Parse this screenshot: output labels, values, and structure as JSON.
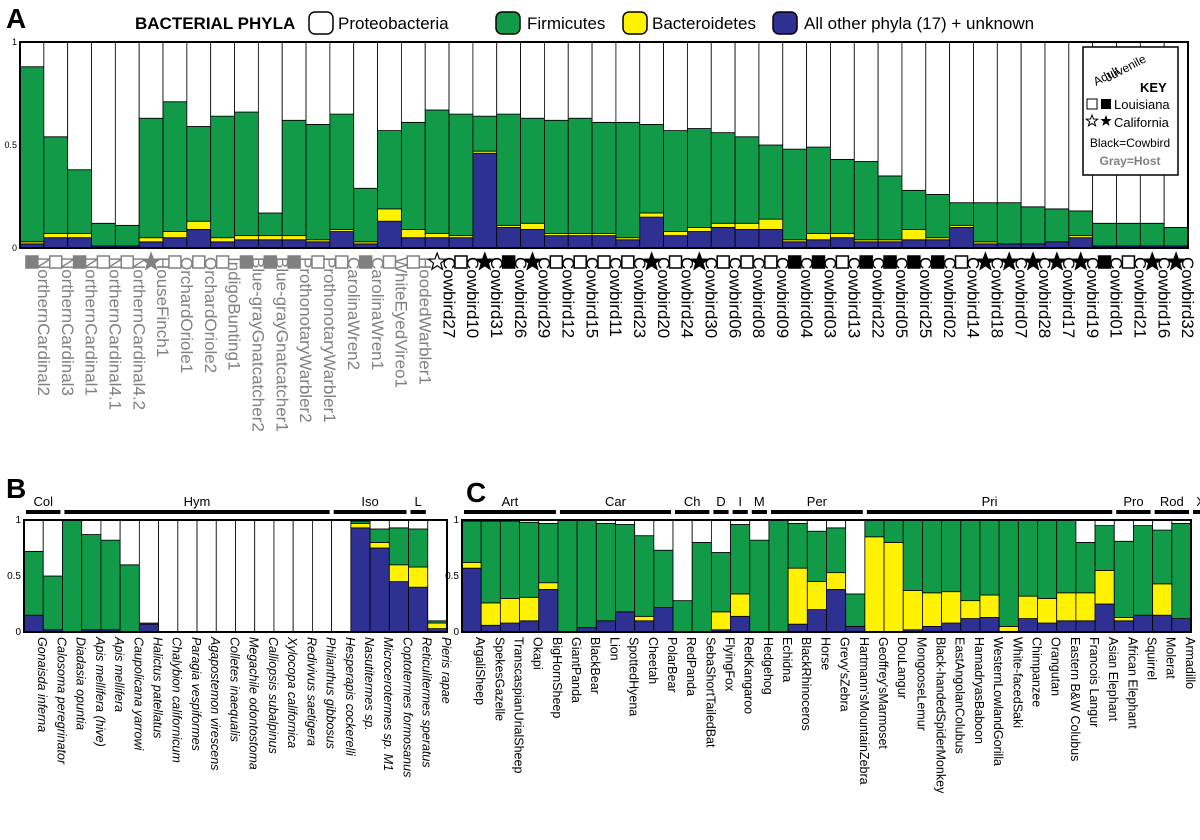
{
  "colors": {
    "proteobacteria": "#ffffff",
    "firmicutes": "#119a48",
    "bacteroidetes": "#fff200",
    "other": "#2e3192",
    "host_label": "#808080",
    "cowbird_label": "#000000"
  },
  "legend": {
    "title": "BACTERIAL PHYLA",
    "items": [
      "Proteobacteria",
      "Firmicutes",
      "Bacteroidetes",
      "All other phyla (17) + unknown"
    ]
  },
  "key": {
    "title": "KEY",
    "col_adult": "Adult",
    "col_juvenile": "Juvenile",
    "louisiana": "Louisiana",
    "california": "California",
    "black_note": "Black=Cowbird",
    "gray_note": "Gray=Host"
  },
  "chart_data": [
    {
      "panel": "A",
      "type": "bar",
      "stacked": true,
      "ylim": [
        0,
        1
      ],
      "yticks": [
        "0",
        "0.5",
        "1"
      ],
      "categories": [
        "NorthernCardinal2",
        "NorthernCardinal3",
        "NorthernCardinal1",
        "NorthernCardinal4.1",
        "NorthernCardinal4.2",
        "HouseFinch1",
        "OrchardOriole1",
        "OrchardOriole2",
        "IndigoBunting1",
        "Blue-grayGnatcatcher2",
        "Blue-grayGnatcatcher1",
        "ProthonotaryWarbler2",
        "ProthonotaryWarbler1",
        "CarolinaWren2",
        "CarolinaWren1",
        "WhiteEyedVireo1",
        "HoodedWarbler1",
        "Cowbird27",
        "Cowbird10",
        "Cowbird31",
        "Cowbird26",
        "Cowbird29",
        "Cowbird12",
        "Cowbird15",
        "Cowbird11",
        "Cowbird23",
        "Cowbird20",
        "Cowbird24",
        "Cowbird30",
        "Cowbird06",
        "Cowbird08",
        "Cowbird09",
        "Cowbird04",
        "Cowbird03",
        "Cowbird13",
        "Cowbird22",
        "Cowbird05",
        "Cowbird25",
        "Cowbird02",
        "Cowbird14",
        "Cowbird18",
        "Cowbird07",
        "Cowbird28",
        "Cowbird17",
        "Cowbird19",
        "Cowbird01",
        "Cowbird21",
        "Cowbird16",
        "Cowbird32"
      ],
      "markers": [
        {
          "shape": "square",
          "filled": true,
          "group": "host"
        },
        {
          "shape": "square",
          "filled": false,
          "group": "host"
        },
        {
          "shape": "square",
          "filled": true,
          "group": "host"
        },
        {
          "shape": "square",
          "filled": false,
          "group": "host"
        },
        {
          "shape": "square",
          "filled": false,
          "group": "host"
        },
        {
          "shape": "star",
          "filled": true,
          "group": "host"
        },
        {
          "shape": "square",
          "filled": false,
          "group": "host"
        },
        {
          "shape": "square",
          "filled": false,
          "group": "host"
        },
        {
          "shape": "square",
          "filled": false,
          "group": "host"
        },
        {
          "shape": "square",
          "filled": true,
          "group": "host"
        },
        {
          "shape": "square",
          "filled": true,
          "group": "host"
        },
        {
          "shape": "square",
          "filled": true,
          "group": "host"
        },
        {
          "shape": "square",
          "filled": false,
          "group": "host"
        },
        {
          "shape": "square",
          "filled": false,
          "group": "host"
        },
        {
          "shape": "square",
          "filled": true,
          "group": "host"
        },
        {
          "shape": "square",
          "filled": false,
          "group": "host"
        },
        {
          "shape": "square",
          "filled": false,
          "group": "host"
        },
        {
          "shape": "star",
          "filled": false,
          "group": "cowbird"
        },
        {
          "shape": "square",
          "filled": false,
          "group": "cowbird"
        },
        {
          "shape": "star",
          "filled": true,
          "group": "cowbird"
        },
        {
          "shape": "square",
          "filled": true,
          "group": "cowbird"
        },
        {
          "shape": "star",
          "filled": true,
          "group": "cowbird"
        },
        {
          "shape": "square",
          "filled": false,
          "group": "cowbird"
        },
        {
          "shape": "square",
          "filled": false,
          "group": "cowbird"
        },
        {
          "shape": "square",
          "filled": false,
          "group": "cowbird"
        },
        {
          "shape": "square",
          "filled": false,
          "group": "cowbird"
        },
        {
          "shape": "star",
          "filled": true,
          "group": "cowbird"
        },
        {
          "shape": "square",
          "filled": false,
          "group": "cowbird"
        },
        {
          "shape": "star",
          "filled": true,
          "group": "cowbird"
        },
        {
          "shape": "square",
          "filled": false,
          "group": "cowbird"
        },
        {
          "shape": "square",
          "filled": false,
          "group": "cowbird"
        },
        {
          "shape": "square",
          "filled": false,
          "group": "cowbird"
        },
        {
          "shape": "square",
          "filled": true,
          "group": "cowbird"
        },
        {
          "shape": "square",
          "filled": true,
          "group": "cowbird"
        },
        {
          "shape": "square",
          "filled": false,
          "group": "cowbird"
        },
        {
          "shape": "square",
          "filled": true,
          "group": "cowbird"
        },
        {
          "shape": "square",
          "filled": true,
          "group": "cowbird"
        },
        {
          "shape": "square",
          "filled": true,
          "group": "cowbird"
        },
        {
          "shape": "square",
          "filled": true,
          "group": "cowbird"
        },
        {
          "shape": "square",
          "filled": false,
          "group": "cowbird"
        },
        {
          "shape": "star",
          "filled": true,
          "group": "cowbird"
        },
        {
          "shape": "star",
          "filled": true,
          "group": "cowbird"
        },
        {
          "shape": "star",
          "filled": true,
          "group": "cowbird"
        },
        {
          "shape": "star",
          "filled": true,
          "group": "cowbird"
        },
        {
          "shape": "star",
          "filled": true,
          "group": "cowbird"
        },
        {
          "shape": "square",
          "filled": true,
          "group": "cowbird"
        },
        {
          "shape": "square",
          "filled": false,
          "group": "cowbird"
        },
        {
          "shape": "star",
          "filled": true,
          "group": "cowbird"
        },
        {
          "shape": "star",
          "filled": true,
          "group": "cowbird"
        }
      ],
      "series": [
        {
          "name": "All other phyla (17) + unknown",
          "values": [
            0.02,
            0.05,
            0.05,
            0.01,
            0.01,
            0.03,
            0.05,
            0.09,
            0.03,
            0.04,
            0.04,
            0.04,
            0.03,
            0.08,
            0.02,
            0.13,
            0.05,
            0.05,
            0.05,
            0.46,
            0.1,
            0.09,
            0.06,
            0.06,
            0.06,
            0.04,
            0.15,
            0.06,
            0.08,
            0.1,
            0.09,
            0.09,
            0.03,
            0.04,
            0.05,
            0.03,
            0.03,
            0.04,
            0.04,
            0.1,
            0.02,
            0.02,
            0.02,
            0.03,
            0.05,
            0.01,
            0.01,
            0.01,
            0.01
          ]
        },
        {
          "name": "Bacteroidetes",
          "values": [
            0.01,
            0.02,
            0.02,
            0.0,
            0.0,
            0.02,
            0.03,
            0.04,
            0.02,
            0.02,
            0.02,
            0.02,
            0.01,
            0.01,
            0.01,
            0.06,
            0.04,
            0.02,
            0.01,
            0.01,
            0.01,
            0.03,
            0.01,
            0.01,
            0.01,
            0.01,
            0.02,
            0.02,
            0.02,
            0.02,
            0.03,
            0.05,
            0.01,
            0.03,
            0.02,
            0.01,
            0.01,
            0.05,
            0.01,
            0.01,
            0.01,
            0.0,
            0.0,
            0.0,
            0.01,
            0.0,
            0.0,
            0.0,
            0.0
          ]
        },
        {
          "name": "Firmicutes",
          "values": [
            0.85,
            0.47,
            0.31,
            0.11,
            0.1,
            0.58,
            0.63,
            0.46,
            0.59,
            0.6,
            0.11,
            0.56,
            0.56,
            0.56,
            0.26,
            0.38,
            0.52,
            0.6,
            0.59,
            0.17,
            0.54,
            0.51,
            0.55,
            0.56,
            0.54,
            0.56,
            0.43,
            0.49,
            0.48,
            0.44,
            0.42,
            0.36,
            0.44,
            0.42,
            0.36,
            0.38,
            0.31,
            0.19,
            0.21,
            0.11,
            0.19,
            0.2,
            0.18,
            0.16,
            0.12,
            0.11,
            0.11,
            0.11,
            0.09
          ]
        },
        {
          "name": "Proteobacteria",
          "values": [
            0.12,
            0.46,
            0.62,
            0.88,
            0.89,
            0.37,
            0.29,
            0.41,
            0.36,
            0.34,
            0.83,
            0.38,
            0.4,
            0.35,
            0.71,
            0.43,
            0.39,
            0.33,
            0.35,
            0.36,
            0.35,
            0.37,
            0.38,
            0.37,
            0.39,
            0.39,
            0.4,
            0.43,
            0.42,
            0.44,
            0.46,
            0.5,
            0.52,
            0.51,
            0.57,
            0.58,
            0.65,
            0.72,
            0.74,
            0.78,
            0.78,
            0.78,
            0.8,
            0.81,
            0.82,
            0.88,
            0.88,
            0.88,
            0.9
          ]
        }
      ]
    },
    {
      "panel": "B",
      "type": "bar",
      "stacked": true,
      "ylim": [
        0,
        1
      ],
      "yticks": [
        "0",
        "0.5",
        "1"
      ],
      "groups": [
        {
          "label": "Col",
          "n": 2
        },
        {
          "label": "Hym",
          "n": 14
        },
        {
          "label": "Iso",
          "n": 4
        },
        {
          "label": "L",
          "n": 1
        }
      ],
      "categories": [
        "Gonaisda inferna",
        "Calosoma peregrinator",
        "Diadasia opuntia",
        "Apis mellifera (hive)",
        "Apis mellifera",
        "Caupolicana yarrowi",
        "Halictus patellatus",
        "Chalybion californicum",
        "Paragia vespiformes",
        "Agapostemon virescens",
        "Colletes inaequalis",
        "Megachile odontostoma",
        "Calliopsis subalpinus",
        "Xylocopa californica",
        "Redivivus saetigera",
        "Philanthus gibbosus",
        "Hesperapis cockerelli",
        "Nasutitermes sp.",
        "Microcerotermes sp. M1",
        "Coptotermes formosanus",
        "Reticulitermes speratus",
        "Pieris rapae"
      ],
      "series": [
        {
          "name": "All other phyla (17) + unknown",
          "values": [
            0.15,
            0.02,
            0.0,
            0.02,
            0.02,
            0.0,
            0.07,
            0.0,
            0.0,
            0.0,
            0.0,
            0.0,
            0.0,
            0.0,
            0.0,
            0.0,
            0.0,
            0.93,
            0.75,
            0.45,
            0.4,
            0.03
          ]
        },
        {
          "name": "Bacteroidetes",
          "values": [
            0.0,
            0.0,
            0.0,
            0.0,
            0.0,
            0.0,
            0.0,
            0.0,
            0.0,
            0.0,
            0.0,
            0.0,
            0.0,
            0.0,
            0.0,
            0.0,
            0.0,
            0.04,
            0.05,
            0.15,
            0.18,
            0.05
          ]
        },
        {
          "name": "Firmicutes",
          "values": [
            0.57,
            0.48,
            1.0,
            0.85,
            0.8,
            0.6,
            0.01,
            0.0,
            0.0,
            0.0,
            0.0,
            0.0,
            0.0,
            0.0,
            0.0,
            0.0,
            0.0,
            0.02,
            0.12,
            0.33,
            0.34,
            0.02
          ]
        },
        {
          "name": "Proteobacteria",
          "values": [
            0.28,
            0.5,
            0.0,
            0.13,
            0.18,
            0.4,
            0.92,
            1.0,
            1.0,
            1.0,
            1.0,
            1.0,
            1.0,
            1.0,
            1.0,
            1.0,
            1.0,
            0.01,
            0.08,
            0.07,
            0.08,
            0.9
          ]
        }
      ]
    },
    {
      "panel": "C",
      "type": "bar",
      "stacked": true,
      "ylim": [
        0,
        1
      ],
      "yticks": [
        "0",
        "0.5",
        "1"
      ],
      "groups": [
        {
          "label": "Art",
          "n": 5
        },
        {
          "label": "Car",
          "n": 6
        },
        {
          "label": "Ch",
          "n": 2
        },
        {
          "label": "D",
          "n": 1
        },
        {
          "label": "I",
          "n": 1
        },
        {
          "label": "M",
          "n": 1
        },
        {
          "label": "Per",
          "n": 5
        },
        {
          "label": "Pri",
          "n": 13
        },
        {
          "label": "Pro",
          "n": 2
        },
        {
          "label": "Rod",
          "n": 2
        },
        {
          "label": "X",
          "n": 1
        }
      ],
      "categories": [
        "ArgaliSheep",
        "SpekesGazelle",
        "TranscaspianUrialSheep",
        "Okapi",
        "BigHornSheep",
        "GiantPanda",
        "BlackBear",
        "Lion",
        "SpottedHyena",
        "Cheetah",
        "PolarBear",
        "RedPanda",
        "SebaShortTailedBat",
        "FlyingFox",
        "RedKangaroo",
        "Hedgehog",
        "Echidna",
        "BlackRhinoceros",
        "Horse",
        "Grevy'sZebra",
        "Hartmann'sMountainZebra",
        "Geoffrey'sMarmoset",
        "DouLangur",
        "MongooseLemur",
        "Black-handedSpiderMonkey",
        "EastAngolanColubus",
        "HamadryasBaboon",
        "WesternLowlandGorilla",
        "White-facedSaki",
        "Chimpanzee",
        "Orangutan",
        "Eastern B&W Colubus",
        "Francois Langur",
        "Asian Elephant",
        "African Elephant",
        "Squirrel",
        "Molerat",
        "Armadillo"
      ],
      "series": [
        {
          "name": "All other phyla (17) + unknown",
          "values": [
            0.57,
            0.06,
            0.08,
            0.1,
            0.38,
            0.0,
            0.04,
            0.1,
            0.18,
            0.1,
            0.22,
            0.0,
            0.0,
            0.02,
            0.14,
            0.0,
            0.0,
            0.07,
            0.2,
            0.38,
            0.05,
            0.0,
            0.0,
            0.02,
            0.05,
            0.08,
            0.12,
            0.13,
            0.0,
            0.12,
            0.08,
            0.1,
            0.1,
            0.25,
            0.1,
            0.15,
            0.15,
            0.12
          ]
        },
        {
          "name": "Bacteroidetes",
          "values": [
            0.05,
            0.2,
            0.22,
            0.21,
            0.06,
            0.0,
            0.0,
            0.0,
            0.0,
            0.04,
            0.0,
            0.0,
            0.0,
            0.16,
            0.2,
            0.0,
            0.0,
            0.5,
            0.25,
            0.15,
            0.0,
            0.85,
            0.8,
            0.35,
            0.3,
            0.28,
            0.16,
            0.2,
            0.05,
            0.2,
            0.22,
            0.25,
            0.25,
            0.3,
            0.03,
            0.0,
            0.28,
            0.0
          ]
        },
        {
          "name": "Firmicutes",
          "values": [
            0.37,
            0.73,
            0.69,
            0.67,
            0.53,
            1.0,
            0.96,
            0.87,
            0.78,
            0.72,
            0.51,
            0.28,
            0.8,
            0.53,
            0.62,
            0.82,
            1.0,
            0.4,
            0.45,
            0.4,
            0.29,
            0.15,
            0.2,
            0.63,
            0.65,
            0.64,
            0.72,
            0.67,
            0.95,
            0.68,
            0.7,
            0.65,
            0.45,
            0.4,
            0.68,
            0.8,
            0.48,
            0.85
          ]
        },
        {
          "name": "Proteobacteria",
          "values": [
            0.01,
            0.01,
            0.01,
            0.02,
            0.03,
            0.0,
            0.0,
            0.03,
            0.04,
            0.14,
            0.27,
            0.72,
            0.2,
            0.29,
            0.04,
            0.18,
            0.0,
            0.03,
            0.1,
            0.07,
            0.66,
            0.0,
            0.0,
            0.0,
            0.0,
            0.0,
            0.0,
            0.0,
            0.0,
            0.0,
            0.0,
            0.0,
            0.2,
            0.05,
            0.19,
            0.05,
            0.09,
            0.03
          ]
        }
      ]
    }
  ],
  "panels": {
    "a": "A",
    "b": "B",
    "c": "C"
  }
}
